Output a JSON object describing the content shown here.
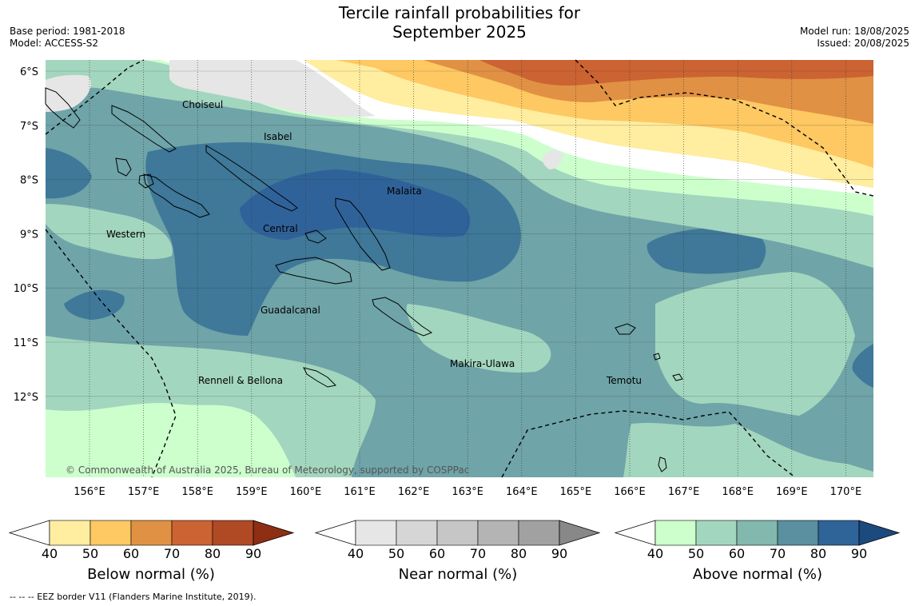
{
  "title_line1": "Tercile rainfall probabilities for",
  "title_line2": "September 2025",
  "base_period": "Base period: 1981-2018",
  "model": "Model: ACCESS-S2",
  "model_run": "Model run: 18/08/2025",
  "issued": "Issued: 20/08/2025",
  "map": {
    "lat_labels": [
      "6°S",
      "7°S",
      "8°S",
      "9°S",
      "10°S",
      "11°S",
      "12°S"
    ],
    "lon_labels": [
      "156°E",
      "157°E",
      "158°E",
      "159°E",
      "160°E",
      "161°E",
      "162°E",
      "163°E",
      "164°E",
      "165°E",
      "166°E",
      "167°E",
      "168°E",
      "169°E",
      "170°E"
    ],
    "regions": {
      "choiseul": "Choiseul",
      "isabel": "Isabel",
      "malaita": "Malaita",
      "western": "Western",
      "central": "Central",
      "guadalcanal": "Guadalcanal",
      "makira": "Makira-Ulawa",
      "rennell": "Rennell & Bellona",
      "temotu": "Temotu"
    },
    "copyright": "© Commonwealth of Australia 2025, Bureau of Meteorology, supported by COSPPac"
  },
  "colorbars": [
    {
      "title": "Below normal (%)",
      "ticks": [
        "40",
        "50",
        "60",
        "70",
        "80",
        "90"
      ],
      "colors": [
        "#ffeda0",
        "#fec862",
        "#e09144",
        "#cc6332",
        "#b04a25",
        "#8e2e12"
      ]
    },
    {
      "title": "Near normal (%)",
      "ticks": [
        "40",
        "50",
        "60",
        "70",
        "80",
        "90"
      ],
      "colors": [
        "#e6e6e6",
        "#d6d6d6",
        "#c6c6c6",
        "#b4b4b4",
        "#a1a1a1",
        "#888888"
      ]
    },
    {
      "title": "Above normal (%)",
      "ticks": [
        "40",
        "50",
        "60",
        "70",
        "80",
        "90"
      ],
      "colors": [
        "#ccffcc",
        "#a3d6be",
        "#82b8ad",
        "#5a90a0",
        "#2f6499",
        "#1c4a7f"
      ]
    }
  ],
  "footnote": "--  --  -- EEZ border V11 (Flanders Marine Institute, 2019)."
}
